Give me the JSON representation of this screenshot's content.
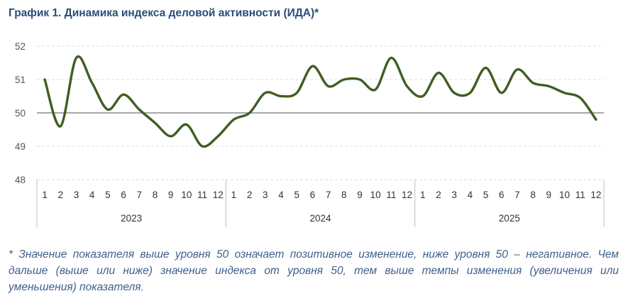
{
  "title": "График 1. Динамика индекса деловой активности (ИДА)*",
  "footnote": "* Значение показателя выше уровня 50 означает позитивное изменение, ниже уровня 50 – негативное. Чем дальше (выше или ниже) значение индекса от уровня 50, тем выше темпы изменения (увеличения или уменьшения) показателя.",
  "chart_data": {
    "type": "line",
    "title": "График 1. Динамика индекса деловой активности (ИДА)*",
    "xlabel": "",
    "ylabel": "",
    "ylim": [
      48,
      52
    ],
    "yticks": [
      "48",
      "49",
      "50",
      "51",
      "52"
    ],
    "grid": true,
    "reference_line": 50,
    "legend": "none",
    "line_color": "#3f5e22",
    "years": [
      "2023",
      "2024",
      "2025"
    ],
    "months": [
      "1",
      "2",
      "3",
      "4",
      "5",
      "6",
      "7",
      "8",
      "9",
      "10",
      "11",
      "12"
    ],
    "values": [
      51.0,
      49.6,
      51.65,
      50.9,
      50.1,
      50.55,
      50.1,
      49.7,
      49.3,
      49.65,
      49.0,
      49.3,
      49.8,
      50.0,
      50.6,
      50.5,
      50.6,
      51.4,
      50.8,
      51.0,
      51.0,
      50.7,
      51.65,
      50.8,
      50.5,
      51.2,
      50.6,
      50.6,
      51.35,
      50.6,
      51.3,
      50.9,
      50.8,
      50.6,
      50.45,
      49.8
    ]
  }
}
